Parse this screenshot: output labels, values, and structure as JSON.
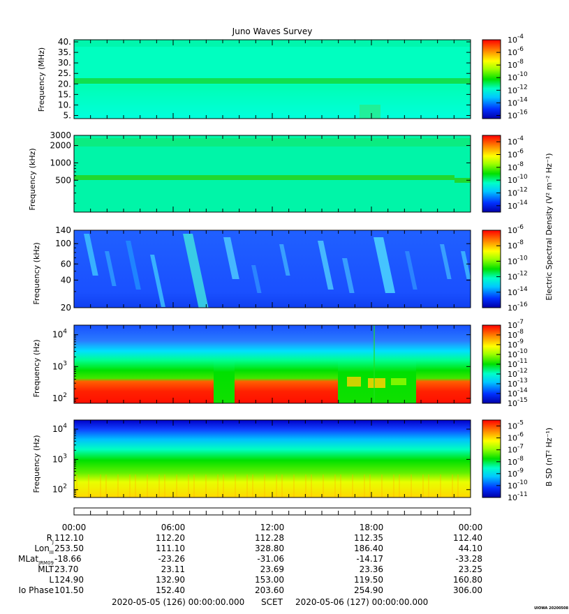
{
  "chart_data": {
    "type": "heatmap",
    "title": "Juno Waves Survey",
    "x_ticks": [
      "00:00",
      "06:00",
      "12:00",
      "18:00",
      "00:00"
    ],
    "panels": [
      {
        "ylabel": "Frequency (MHz)",
        "ylim": [
          3.5,
          41
        ],
        "yscale": "linear",
        "yticks": [
          "40.",
          "35.",
          "30.",
          "25.",
          "20.",
          "15.",
          "10.",
          "5."
        ],
        "ytick_values": [
          40,
          35,
          30,
          25,
          20,
          15,
          10,
          5
        ],
        "colorbar_exponents": [
          "-4",
          "-6",
          "-8",
          "-10",
          "-12",
          "-14",
          "-16"
        ],
        "colorbar_range": [
          -16.5,
          -4
        ]
      },
      {
        "ylabel": "Frequency (kHz)",
        "ylim": [
          140,
          3000
        ],
        "yscale": "log",
        "yticks": [
          "3000",
          "2000",
          "1000",
          "500"
        ],
        "ytick_values": [
          3000,
          2000,
          1000,
          500
        ],
        "colorbar_exponents": [
          "-4",
          "-6",
          "-8",
          "-10",
          "-12",
          "-14"
        ],
        "colorbar_range": [
          -15,
          -3
        ]
      },
      {
        "ylabel": "Frequency (kHz)",
        "ylim": [
          20,
          140
        ],
        "yscale": "log",
        "yticks": [
          "140",
          "100",
          "60",
          "40",
          "20"
        ],
        "ytick_values": [
          140,
          100,
          60,
          40,
          20
        ],
        "colorbar_exponents": [
          "-6",
          "-8",
          "-10",
          "-12",
          "-14",
          "-16"
        ],
        "colorbar_range": [
          -16,
          -6
        ]
      },
      {
        "ylabel": "Frequency (Hz)",
        "ylim": [
          70,
          20000
        ],
        "yscale": "log",
        "yticks": [
          "10",
          "10",
          "10"
        ],
        "ytick_exponents": [
          "4",
          "3",
          "2"
        ],
        "ytick_values": [
          10000,
          1000,
          100
        ],
        "colorbar_exponents": [
          "-7",
          "-8",
          "-9",
          "-10",
          "-11",
          "-12",
          "-13",
          "-14",
          "-15"
        ],
        "colorbar_range": [
          -15,
          -7
        ]
      },
      {
        "ylabel": "Frequency (Hz)",
        "ylim": [
          55,
          20000
        ],
        "yscale": "log",
        "yticks": [
          "10",
          "10",
          "10"
        ],
        "ytick_exponents": [
          "4",
          "3",
          "2"
        ],
        "ytick_values": [
          10000,
          1000,
          100
        ],
        "colorbar_exponents": [
          "-5",
          "-6",
          "-7",
          "-8",
          "-9",
          "-10",
          "-11"
        ],
        "colorbar_range": [
          -11,
          -4.5
        ]
      }
    ],
    "colorbar_labels": {
      "electric": "Electric Spectral Density (V² m⁻² Hz⁻¹)",
      "magnetic": "B SD (nT² Hz⁻¹)"
    },
    "ephemeris": {
      "labels": [
        "R",
        "Lon",
        "MLat",
        "MLT",
        "L",
        "Io Phase"
      ],
      "label_subscripts": [
        "J",
        "III",
        "JRM09",
        "",
        "",
        ""
      ],
      "rows": [
        [
          "112.10",
          "112.20",
          "112.28",
          "112.35",
          "112.40"
        ],
        [
          "253.50",
          "111.10",
          "328.80",
          "186.40",
          "44.10"
        ],
        [
          "-18.66",
          "-23.26",
          "-31.06",
          "-14.17",
          "-33.28"
        ],
        [
          "23.70",
          "23.11",
          "23.69",
          "23.36",
          "23.25"
        ],
        [
          "124.90",
          "132.90",
          "153.00",
          "119.50",
          "160.80"
        ],
        [
          "101.50",
          "152.40",
          "203.60",
          "254.90",
          "306.00"
        ]
      ]
    },
    "date_start": "2020-05-05 (126) 00:00:00.000",
    "scet_label": "SCET",
    "date_end": "2020-05-06 (127) 00:00:00.000",
    "stamp": "UIOWA 20200508"
  }
}
